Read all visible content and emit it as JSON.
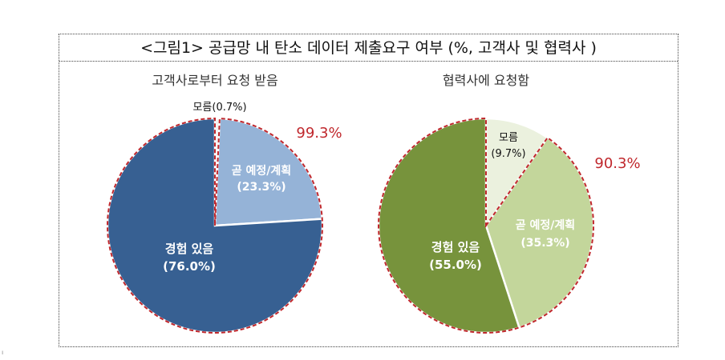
{
  "figure_title": "<그림1> 공급망 내 탄소 데이터 제출요구 여부 (%, 고객사 및 협력사 )",
  "chart_data": [
    {
      "type": "pie",
      "title": "고객사로부터 요청 받음",
      "slices": [
        {
          "label": "모름",
          "value": 0.7,
          "text": "모름(0.7%)",
          "color": "#f2f2f2"
        },
        {
          "label": "곧 예정/계획",
          "value": 23.3,
          "text": "(23.3%)",
          "color": "#95b3d7"
        },
        {
          "label": "경험 있음",
          "value": 76.0,
          "text": "(76.0%)",
          "color": "#376092"
        }
      ],
      "highlight_total": "99.3%",
      "highlight_color": "#c0282d"
    },
    {
      "type": "pie",
      "title": "협력사에 요청함",
      "slices": [
        {
          "label": "모름",
          "value": 9.7,
          "text": "(9.7%)",
          "color": "#ebf1de"
        },
        {
          "label": "곧 예정/계획",
          "value": 35.3,
          "text": "(35.3%)",
          "color": "#c3d69b"
        },
        {
          "label": "경험 있음",
          "value": 55.0,
          "text": "(55.0%)",
          "color": "#77933c"
        }
      ],
      "highlight_total": "90.3%",
      "highlight_color": "#c0282d"
    }
  ]
}
